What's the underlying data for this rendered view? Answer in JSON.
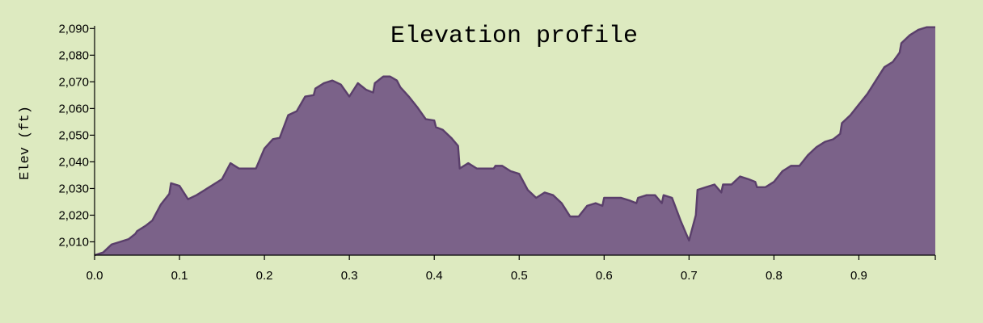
{
  "chart_data": {
    "type": "area",
    "title": "Elevation profile",
    "xlabel": "",
    "ylabel": "Elev (ft)",
    "xlim": [
      0,
      0.99
    ],
    "ylim": [
      2005,
      2091
    ],
    "x_ticks": [
      0.0,
      0.1,
      0.2,
      0.3,
      0.4,
      0.5,
      0.6,
      0.7,
      0.8,
      0.9
    ],
    "x_tick_labels": [
      "0.0",
      "0.1",
      "0.2",
      "0.3",
      "0.4",
      "0.5",
      "0.6",
      "0.7",
      "0.8",
      "0.9"
    ],
    "y_ticks": [
      2010,
      2020,
      2030,
      2040,
      2050,
      2060,
      2070,
      2080,
      2090
    ],
    "y_tick_labels": [
      "2,010",
      "2,020",
      "2,030",
      "2,040",
      "2,050",
      "2,060",
      "2,070",
      "2,080",
      "2,090"
    ],
    "grid": false,
    "fill_color": "#7b6289",
    "line_color": "#5a3f6b",
    "series": [
      {
        "x": [
          0.0,
          0.01,
          0.02,
          0.03,
          0.04,
          0.048,
          0.05,
          0.06,
          0.068,
          0.078,
          0.088,
          0.09,
          0.1,
          0.11,
          0.12,
          0.13,
          0.14,
          0.15,
          0.16,
          0.17,
          0.18,
          0.19,
          0.2,
          0.21,
          0.218,
          0.228,
          0.238,
          0.248,
          0.258,
          0.26,
          0.27,
          0.28,
          0.29,
          0.3,
          0.31,
          0.32,
          0.328,
          0.33,
          0.34,
          0.348,
          0.356,
          0.36,
          0.37,
          0.38,
          0.39,
          0.4,
          0.402,
          0.41,
          0.42,
          0.428,
          0.43,
          0.44,
          0.45,
          0.46,
          0.47,
          0.472,
          0.48,
          0.49,
          0.5,
          0.51,
          0.52,
          0.53,
          0.54,
          0.55,
          0.56,
          0.57,
          0.58,
          0.59,
          0.598,
          0.6,
          0.61,
          0.62,
          0.63,
          0.638,
          0.64,
          0.65,
          0.66,
          0.668,
          0.67,
          0.68,
          0.69,
          0.7,
          0.708,
          0.71,
          0.72,
          0.73,
          0.738,
          0.74,
          0.75,
          0.76,
          0.77,
          0.778,
          0.78,
          0.79,
          0.8,
          0.81,
          0.82,
          0.83,
          0.84,
          0.85,
          0.86,
          0.87,
          0.878,
          0.88,
          0.89,
          0.9,
          0.91,
          0.92,
          0.93,
          0.94,
          0.948,
          0.95,
          0.96,
          0.97,
          0.98,
          0.99
        ],
        "values": [
          2005,
          2006,
          2009,
          2010,
          2011,
          2013,
          2014,
          2016,
          2018,
          2024,
          2028,
          2032,
          2031,
          2026,
          2027.5,
          2029.5,
          2031.5,
          2033.5,
          2039.5,
          2037.5,
          2037.5,
          2037.5,
          2045,
          2048.5,
          2049,
          2057.5,
          2059,
          2064.5,
          2065,
          2067.5,
          2069.5,
          2070.5,
          2069,
          2064.5,
          2069.5,
          2067,
          2066,
          2069.5,
          2072,
          2072,
          2070.5,
          2068,
          2064.5,
          2060.5,
          2056,
          2055.5,
          2053,
          2052,
          2049,
          2046,
          2037.5,
          2039.5,
          2037.5,
          2037.5,
          2037.5,
          2038.5,
          2038.5,
          2036.5,
          2035.5,
          2029.5,
          2026.5,
          2028.5,
          2027.5,
          2024.5,
          2019.5,
          2019.5,
          2023.5,
          2024.5,
          2023.5,
          2026.5,
          2026.5,
          2026.5,
          2025.5,
          2024.5,
          2026.5,
          2027.5,
          2027.5,
          2024.5,
          2027.5,
          2026.5,
          2018,
          2010.5,
          2020,
          2029.5,
          2030.5,
          2031.5,
          2028.5,
          2031.5,
          2031.5,
          2034.5,
          2033.5,
          2032.5,
          2030.5,
          2030.5,
          2032.5,
          2036.5,
          2038.5,
          2038.5,
          2042.5,
          2045.5,
          2047.5,
          2048.5,
          2050.5,
          2054.5,
          2057.5,
          2061.5,
          2065.5,
          2070.5,
          2075.5,
          2077.5,
          2081,
          2084.5,
          2087.5,
          2089.5,
          2090.5,
          2090.5
        ]
      }
    ]
  }
}
